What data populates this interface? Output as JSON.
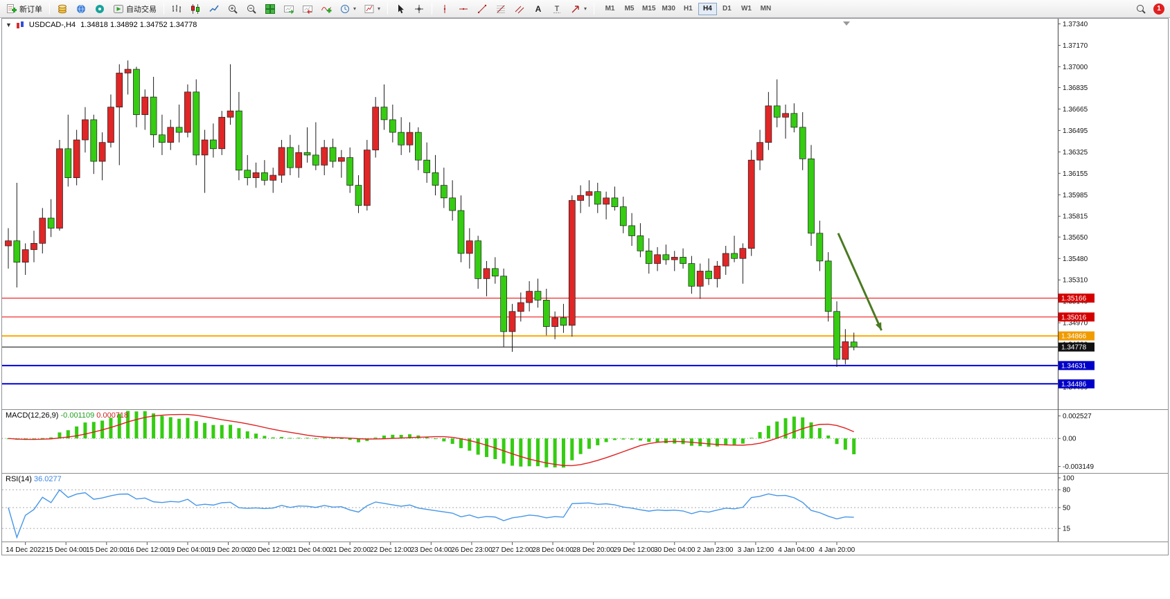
{
  "toolbar": {
    "new_order_label": "新订单",
    "autotrading_label": "自动交易",
    "timeframes": [
      "M1",
      "M5",
      "M15",
      "M30",
      "H1",
      "H4",
      "D1",
      "W1",
      "MN"
    ],
    "active_timeframe": "H4",
    "notification_count": "1"
  },
  "chart": {
    "title": "USDCAD-,H4",
    "quote": "1.34818 1.34892 1.34752 1.34778"
  },
  "indicators": {
    "macd_name": "MACD(12,26,9)",
    "macd_value1": "-0.001109",
    "macd_value2": "0.000718",
    "rsi_name": "RSI(14)",
    "rsi_value": "36.0277"
  },
  "chart_data": {
    "type": "candlestick",
    "symbol": "USDCAD",
    "period": "H4",
    "ohlc_display": {
      "open": "1.34818",
      "high": "1.34892",
      "low": "1.34752",
      "close": "1.34778"
    },
    "price_axis": {
      "min": 1.3429,
      "max": 1.3737,
      "ticks": [
        "1.37340",
        "1.37170",
        "1.37000",
        "1.36835",
        "1.36665",
        "1.36495",
        "1.36325",
        "1.36155",
        "1.35985",
        "1.35815",
        "1.35650",
        "1.35480",
        "1.35310",
        "1.35140",
        "1.34970",
        "1.34800",
        "1.34630",
        "1.34460"
      ]
    },
    "time_labels": [
      "14 Dec 2022",
      "15 Dec 04:00",
      "15 Dec 20:00",
      "16 Dec 12:00",
      "19 Dec 04:00",
      "19 Dec 20:00",
      "20 Dec 12:00",
      "21 Dec 04:00",
      "21 Dec 20:00",
      "22 Dec 12:00",
      "23 Dec 04:00",
      "26 Dec 23:00",
      "27 Dec 12:00",
      "28 Dec 04:00",
      "28 Dec 20:00",
      "29 Dec 12:00",
      "30 Dec 04:00",
      "2 Jan 23:00",
      "3 Jan 12:00",
      "4 Jan 04:00",
      "4 Jan 20:00"
    ],
    "candles": [
      [
        1.3558,
        1.3572,
        1.354,
        1.3562
      ],
      [
        1.3562,
        1.3608,
        1.3525,
        1.3545
      ],
      [
        1.3545,
        1.356,
        1.3535,
        1.3555
      ],
      [
        1.3555,
        1.357,
        1.3545,
        1.356
      ],
      [
        1.356,
        1.3588,
        1.3552,
        1.358
      ],
      [
        1.358,
        1.3595,
        1.3565,
        1.3572
      ],
      [
        1.3572,
        1.3642,
        1.357,
        1.3635
      ],
      [
        1.3635,
        1.3662,
        1.3605,
        1.3612
      ],
      [
        1.3612,
        1.365,
        1.3606,
        1.3642
      ],
      [
        1.3642,
        1.3668,
        1.3632,
        1.3658
      ],
      [
        1.3658,
        1.3662,
        1.3615,
        1.3625
      ],
      [
        1.3625,
        1.3648,
        1.361,
        1.364
      ],
      [
        1.364,
        1.3678,
        1.3636,
        1.3668
      ],
      [
        1.3668,
        1.3702,
        1.3622,
        1.3695
      ],
      [
        1.3695,
        1.3705,
        1.3678,
        1.3698
      ],
      [
        1.3698,
        1.37,
        1.3652,
        1.3662
      ],
      [
        1.3662,
        1.3682,
        1.365,
        1.3676
      ],
      [
        1.3676,
        1.3692,
        1.3636,
        1.3646
      ],
      [
        1.3646,
        1.3662,
        1.363,
        1.364
      ],
      [
        1.364,
        1.3658,
        1.3634,
        1.3652
      ],
      [
        1.3652,
        1.367,
        1.364,
        1.3648
      ],
      [
        1.3648,
        1.3686,
        1.3644,
        1.368
      ],
      [
        1.368,
        1.369,
        1.3622,
        1.363
      ],
      [
        1.363,
        1.365,
        1.36,
        1.3642
      ],
      [
        1.3642,
        1.3655,
        1.3628,
        1.3635
      ],
      [
        1.3635,
        1.3665,
        1.363,
        1.366
      ],
      [
        1.366,
        1.3702,
        1.3654,
        1.3665
      ],
      [
        1.3665,
        1.368,
        1.361,
        1.3618
      ],
      [
        1.3618,
        1.363,
        1.3606,
        1.3612
      ],
      [
        1.3612,
        1.3624,
        1.3604,
        1.3616
      ],
      [
        1.3616,
        1.3626,
        1.3606,
        1.361
      ],
      [
        1.361,
        1.362,
        1.36,
        1.3614
      ],
      [
        1.3614,
        1.3642,
        1.3608,
        1.3636
      ],
      [
        1.3636,
        1.3646,
        1.3614,
        1.362
      ],
      [
        1.362,
        1.3638,
        1.3612,
        1.3632
      ],
      [
        1.3632,
        1.3652,
        1.3624,
        1.363
      ],
      [
        1.363,
        1.3656,
        1.3618,
        1.3622
      ],
      [
        1.3622,
        1.3642,
        1.3614,
        1.3636
      ],
      [
        1.3636,
        1.3643,
        1.362,
        1.3625
      ],
      [
        1.3625,
        1.3634,
        1.3612,
        1.3628
      ],
      [
        1.3628,
        1.3636,
        1.36,
        1.3606
      ],
      [
        1.3606,
        1.3614,
        1.3584,
        1.359
      ],
      [
        1.359,
        1.3642,
        1.3586,
        1.3634
      ],
      [
        1.3634,
        1.3676,
        1.3628,
        1.3668
      ],
      [
        1.3668,
        1.3686,
        1.365,
        1.3658
      ],
      [
        1.3658,
        1.367,
        1.364,
        1.3648
      ],
      [
        1.3648,
        1.366,
        1.363,
        1.3638
      ],
      [
        1.3638,
        1.3656,
        1.3632,
        1.3648
      ],
      [
        1.3648,
        1.3652,
        1.3618,
        1.3626
      ],
      [
        1.3626,
        1.364,
        1.3608,
        1.3616
      ],
      [
        1.3616,
        1.363,
        1.3598,
        1.3606
      ],
      [
        1.3606,
        1.362,
        1.3588,
        1.3596
      ],
      [
        1.3596,
        1.361,
        1.3578,
        1.3586
      ],
      [
        1.3586,
        1.3598,
        1.3545,
        1.3552
      ],
      [
        1.3552,
        1.3572,
        1.354,
        1.3562
      ],
      [
        1.3562,
        1.3566,
        1.3524,
        1.3532
      ],
      [
        1.3532,
        1.3546,
        1.3518,
        1.354
      ],
      [
        1.354,
        1.3549,
        1.3528,
        1.3534
      ],
      [
        1.3534,
        1.354,
        1.3478,
        1.349
      ],
      [
        1.349,
        1.3512,
        1.3474,
        1.3506
      ],
      [
        1.3506,
        1.3521,
        1.3498,
        1.3513
      ],
      [
        1.3513,
        1.353,
        1.3506,
        1.3522
      ],
      [
        1.3522,
        1.3532,
        1.3509,
        1.3515
      ],
      [
        1.3515,
        1.3524,
        1.3487,
        1.3494
      ],
      [
        1.3494,
        1.3506,
        1.3484,
        1.3501
      ],
      [
        1.3501,
        1.3512,
        1.3489,
        1.3495
      ],
      [
        1.3495,
        1.3598,
        1.3486,
        1.3594
      ],
      [
        1.3594,
        1.3606,
        1.3584,
        1.3598
      ],
      [
        1.3598,
        1.361,
        1.3589,
        1.3601
      ],
      [
        1.3601,
        1.3608,
        1.3584,
        1.3591
      ],
      [
        1.3591,
        1.3601,
        1.3579,
        1.3596
      ],
      [
        1.3596,
        1.3605,
        1.3586,
        1.3589
      ],
      [
        1.3589,
        1.3597,
        1.3568,
        1.3574
      ],
      [
        1.3574,
        1.3584,
        1.3558,
        1.3566
      ],
      [
        1.3566,
        1.3576,
        1.3549,
        1.3554
      ],
      [
        1.3554,
        1.3564,
        1.3536,
        1.3544
      ],
      [
        1.3544,
        1.3557,
        1.3538,
        1.3551
      ],
      [
        1.3551,
        1.3559,
        1.3543,
        1.3547
      ],
      [
        1.3547,
        1.3554,
        1.3538,
        1.3549
      ],
      [
        1.3549,
        1.3556,
        1.354,
        1.3544
      ],
      [
        1.3544,
        1.355,
        1.352,
        1.3526
      ],
      [
        1.3526,
        1.3544,
        1.3516,
        1.3538
      ],
      [
        1.3538,
        1.3548,
        1.3527,
        1.3532
      ],
      [
        1.3532,
        1.3546,
        1.3525,
        1.3542
      ],
      [
        1.3542,
        1.3558,
        1.3535,
        1.3552
      ],
      [
        1.3552,
        1.3566,
        1.3545,
        1.3548
      ],
      [
        1.3548,
        1.356,
        1.3528,
        1.3556
      ],
      [
        1.3556,
        1.3634,
        1.355,
        1.3626
      ],
      [
        1.3626,
        1.365,
        1.3618,
        1.364
      ],
      [
        1.364,
        1.368,
        1.3634,
        1.3669
      ],
      [
        1.3669,
        1.369,
        1.3652,
        1.366
      ],
      [
        1.366,
        1.367,
        1.3643,
        1.3663
      ],
      [
        1.3663,
        1.3671,
        1.3648,
        1.3652
      ],
      [
        1.3652,
        1.3664,
        1.3618,
        1.3627
      ],
      [
        1.3627,
        1.3638,
        1.3558,
        1.3568
      ],
      [
        1.3568,
        1.3578,
        1.3538,
        1.3546
      ],
      [
        1.3546,
        1.3553,
        1.3498,
        1.3506
      ],
      [
        1.3506,
        1.3514,
        1.3462,
        1.3468
      ],
      [
        1.3468,
        1.3492,
        1.3464,
        1.3482
      ],
      [
        1.34818,
        1.34892,
        1.34752,
        1.34778
      ]
    ],
    "hlines": [
      {
        "price": 1.35166,
        "label": "1.35166",
        "color": "#ee0000",
        "width": 1,
        "label_bg": "#d40000"
      },
      {
        "price": 1.35016,
        "label": "1.35016",
        "color": "#ee0000",
        "width": 1,
        "label_bg": "#d40000"
      },
      {
        "price": 1.34866,
        "label": "1.34866",
        "color": "#ffaa00",
        "width": 2,
        "label_bg": "#f09b00"
      },
      {
        "price": 1.34778,
        "label": "1.34778",
        "color": "#000000",
        "width": 1,
        "label_bg": "#111111"
      },
      {
        "price": 1.34631,
        "label": "1.34631",
        "color": "#0000dd",
        "width": 2,
        "label_bg": "#0000c8"
      },
      {
        "price": 1.34486,
        "label": "1.34486",
        "color": "#0000dd",
        "width": 2,
        "label_bg": "#0000c8"
      }
    ],
    "arrow": {
      "xf_from": 0.792,
      "price_from": 1.3568,
      "xf_to": 0.833,
      "price_to": 1.3491
    },
    "macd": {
      "name": "MACD(12,26,9)",
      "fast": 12,
      "slow": 26,
      "signal": 9,
      "axis_min": -0.0038,
      "axis_max": 0.0032,
      "ticks": [
        "0.002527",
        "0.00",
        "-0.003149"
      ]
    },
    "rsi": {
      "name": "RSI(14)",
      "period": 14,
      "levels": [
        80,
        50,
        15
      ],
      "ticks": [
        "100",
        "80",
        "50",
        "15"
      ]
    },
    "colors": {
      "bull": "#e02626",
      "bear": "#35cc12",
      "wick": "#1a1a1a",
      "macd_bar": "#35cc12",
      "macd_signal": "#e01f1f",
      "rsi_line": "#4696e8",
      "arrow": "#4a7a22"
    }
  }
}
